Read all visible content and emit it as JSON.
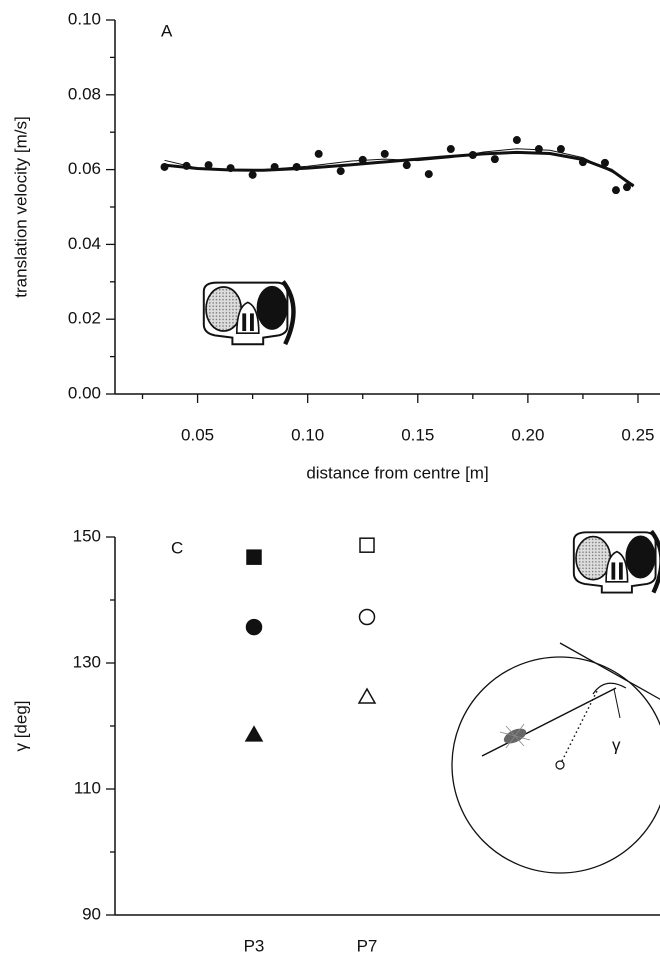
{
  "chart_data": [
    {
      "type": "scatter",
      "panel_label": "A",
      "x_label": "distance from centre [m]",
      "y_label": "translation velocity [m/s]",
      "xlim": [
        0.0125,
        0.26
      ],
      "ylim": [
        0,
        0.1
      ],
      "xticks": [
        0.05,
        {
          "value": 0.1,
          "label": "0.10"
        },
        0.15,
        {
          "value": 0.2,
          "label": "0.20"
        },
        0.25
      ],
      "yticks": [
        {
          "value": 0,
          "label": "0.00"
        },
        0.02,
        0.04,
        0.06,
        0.08,
        {
          "value": 0.1,
          "label": "0.10"
        }
      ],
      "color": "#111111",
      "x": [
        0.035,
        0.045,
        0.055,
        0.065,
        0.075,
        0.085,
        0.095,
        0.105,
        0.115,
        0.125,
        0.135,
        0.145,
        0.155,
        0.165,
        0.175,
        0.185,
        0.195,
        0.205,
        0.215,
        0.225,
        0.235,
        0.24,
        0.245
      ],
      "values": [
        0.0607,
        0.061,
        0.0612,
        0.0604,
        0.0586,
        0.0607,
        0.0607,
        0.0642,
        0.0596,
        0.0626,
        0.0642,
        0.0612,
        0.0588,
        0.0655,
        0.0639,
        0.0628,
        0.0679,
        0.0655,
        0.0655,
        0.062,
        0.0618,
        0.0545,
        0.0553
      ],
      "fits": [
        {
          "x": [
            0.035,
            0.05,
            0.065,
            0.08,
            0.1,
            0.12,
            0.14,
            0.16,
            0.18,
            0.195,
            0.21,
            0.225,
            0.238,
            0.248
          ],
          "values": [
            0.0612,
            0.0603,
            0.0599,
            0.0598,
            0.0604,
            0.0613,
            0.0623,
            0.0633,
            0.0642,
            0.0646,
            0.0643,
            0.0627,
            0.0598,
            0.0556
          ]
        },
        {
          "x": [
            0.035,
            0.05,
            0.065,
            0.08,
            0.1,
            0.12,
            0.135,
            0.15,
            0.165,
            0.18,
            0.195,
            0.21,
            0.225,
            0.24,
            0.248
          ],
          "values": [
            0.0625,
            0.0604,
            0.0598,
            0.06,
            0.0609,
            0.0623,
            0.0628,
            0.0624,
            0.0632,
            0.0647,
            0.0656,
            0.0652,
            0.0632,
            0.0588,
            0.056
          ]
        }
      ]
    },
    {
      "type": "strip",
      "panel_label": "C",
      "y_label": "γ [deg]",
      "annotation": "γ",
      "categories": [
        "P3",
        "P7"
      ],
      "filled": [
        true,
        false
      ],
      "ylim": [
        90,
        150
      ],
      "yticks": [
        90,
        110,
        130,
        150
      ],
      "color": "#111111",
      "series": [
        {
          "marker": "square",
          "values": [
            146.8,
            148.7
          ]
        },
        {
          "marker": "circle",
          "values": [
            135.7,
            137.3
          ]
        },
        {
          "marker": "triangle",
          "values": [
            118.6,
            124.6
          ]
        }
      ]
    }
  ]
}
